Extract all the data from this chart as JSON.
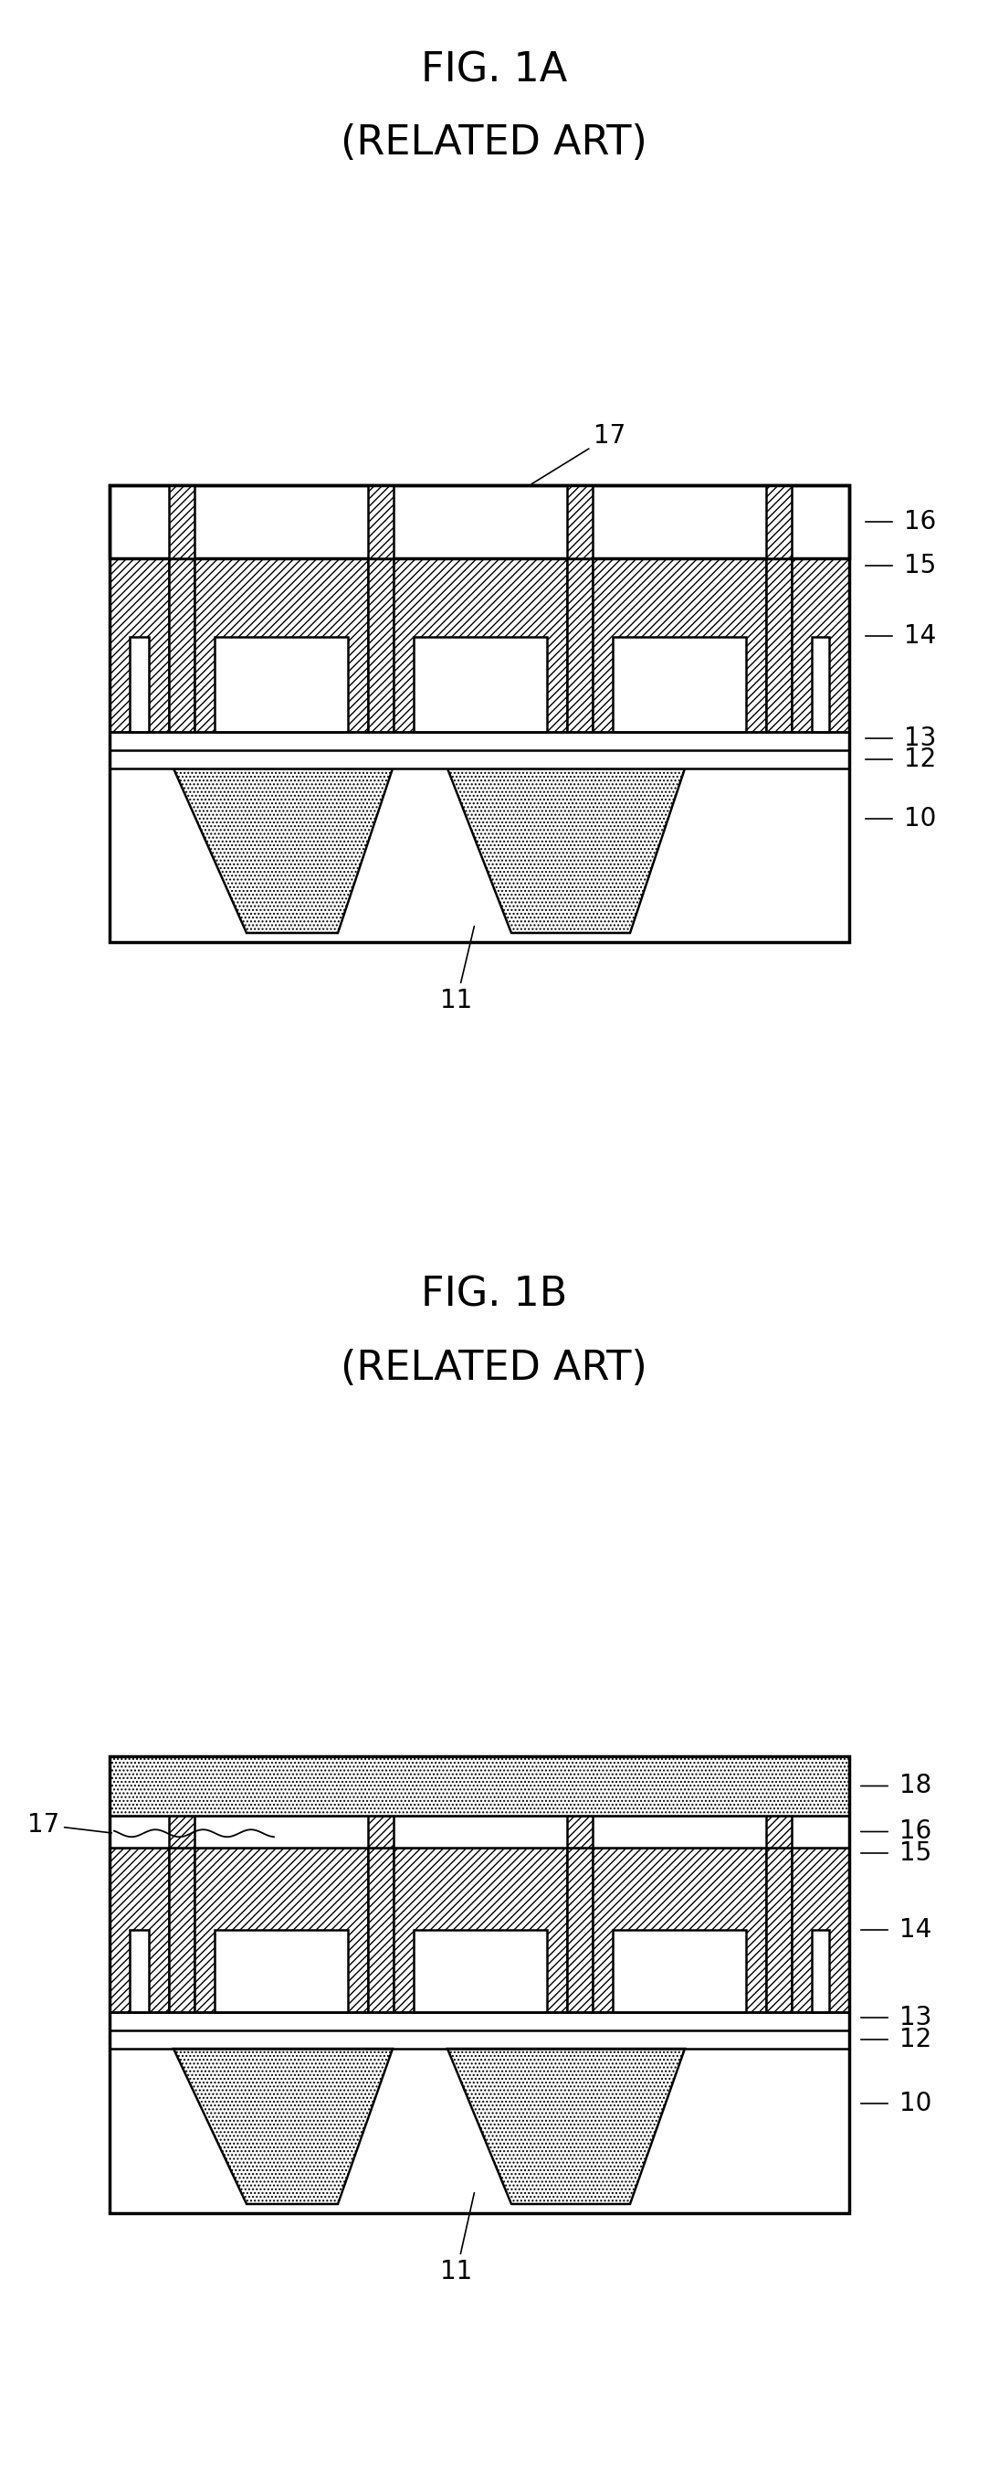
{
  "fig_title_1a": "FIG. 1A",
  "fig_subtitle_1a": "(RELATED ART)",
  "fig_title_1b": "FIG. 1B",
  "fig_subtitle_1b": "(RELATED ART)",
  "bg_color": "#ffffff"
}
